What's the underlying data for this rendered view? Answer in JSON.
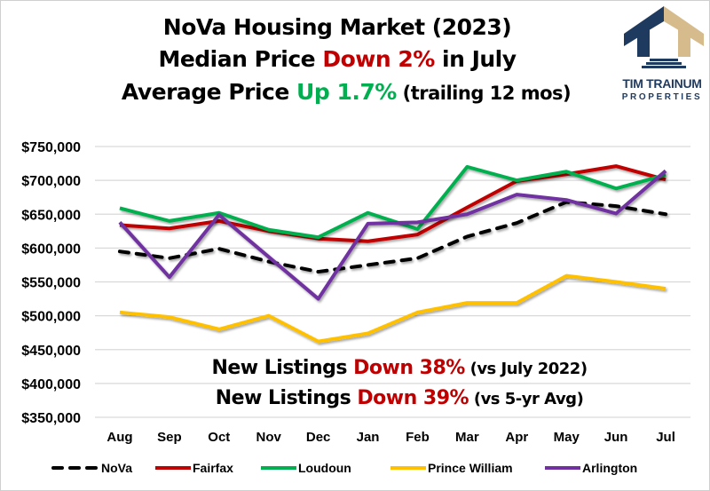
{
  "header": {
    "line1": "NoVa Housing Market (2023)",
    "line2_prefix": "Median Price ",
    "line2_highlight": "Down 2%",
    "line2_suffix": " in July",
    "line3_prefix": "Average Price ",
    "line3_highlight": "Up 1.7%",
    "line3_suffix": " (trailing 12 mos)"
  },
  "logo": {
    "name": "TIM TRAINUM",
    "subtitle": "PROPERTIES",
    "colors": {
      "navy": "#1F3A5F",
      "gold": "#D6BC8C"
    }
  },
  "annotations": [
    {
      "prefix": "New Listings ",
      "highlight": "Down 38%",
      "suffix": " (vs July 2022)"
    },
    {
      "prefix": "New Listings ",
      "highlight": "Down 39%",
      "suffix": " (vs 5-yr Avg)"
    }
  ],
  "colors": {
    "down": "#C00000",
    "up": "#00B050",
    "grid": "#d9d9d9"
  },
  "chart_data": {
    "type": "line",
    "title": "NoVa Housing Market (2023)",
    "xlabel": "",
    "ylabel": "",
    "categories": [
      "Aug",
      "Sep",
      "Oct",
      "Nov",
      "Dec",
      "Jan",
      "Feb",
      "Mar",
      "Apr",
      "May",
      "Jun",
      "Jul"
    ],
    "ylim": [
      350000,
      750000
    ],
    "yticks": [
      350000,
      400000,
      450000,
      500000,
      550000,
      600000,
      650000,
      700000,
      750000
    ],
    "ytick_labels": [
      "$350,000",
      "$400,000",
      "$450,000",
      "$500,000",
      "$550,000",
      "$600,000",
      "$650,000",
      "$700,000",
      "$750,000"
    ],
    "grid": true,
    "legend_position": "bottom",
    "series": [
      {
        "name": "NoVa",
        "color": "#000000",
        "dashed": true,
        "values": [
          595000,
          585000,
          599000,
          580000,
          565000,
          575000,
          585000,
          617000,
          637000,
          668000,
          662000,
          650000
        ]
      },
      {
        "name": "Fairfax",
        "color": "#C00000",
        "dashed": false,
        "values": [
          634000,
          629000,
          640000,
          625000,
          614000,
          610000,
          620000,
          660000,
          699000,
          709000,
          721000,
          701000
        ]
      },
      {
        "name": "Loudoun",
        "color": "#00B050",
        "dashed": false,
        "values": [
          659000,
          640000,
          652000,
          627000,
          616000,
          652000,
          628000,
          720000,
          700000,
          713000,
          688000,
          708000
        ]
      },
      {
        "name": "Prince William",
        "color": "#FFC000",
        "dashed": false,
        "values": [
          505000,
          498000,
          480000,
          500000,
          462000,
          474000,
          505000,
          519000,
          519000,
          559000,
          550000,
          540000
        ]
      },
      {
        "name": "Arlington",
        "color": "#7030A0",
        "dashed": false,
        "values": [
          638000,
          557000,
          649000,
          587000,
          525000,
          636000,
          638000,
          650000,
          679000,
          671000,
          651000,
          714000
        ]
      }
    ]
  }
}
